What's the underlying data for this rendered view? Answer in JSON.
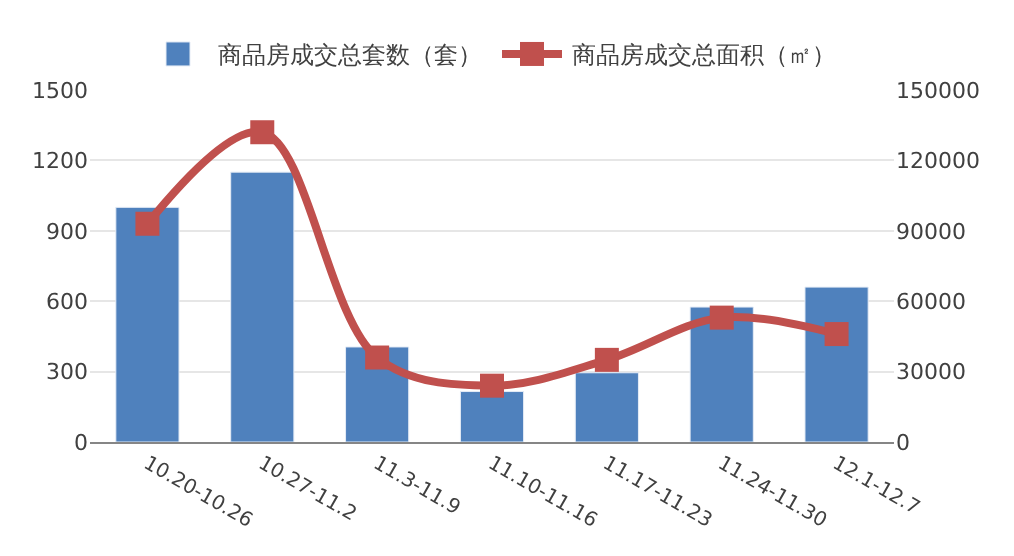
{
  "chart_data": {
    "type": "bar",
    "categories": [
      "10.20-10.26",
      "10.27-11.2",
      "11.3-11.9",
      "11.10-11.16",
      "11.17-11.23",
      "11.24-11.30",
      "12.1-12.7"
    ],
    "series": [
      {
        "name": "商品房成交总套数（套）",
        "color": "#4f81bd",
        "values": [
          1000,
          1150,
          405,
          215,
          295,
          575,
          660
        ]
      },
      {
        "name": "商品房成交总面积（㎡）",
        "color": "#c0504d",
        "type": "line",
        "axis": "y2",
        "marker": "square",
        "values": [
          93000,
          132000,
          36000,
          24000,
          35000,
          53000,
          46000
        ]
      }
    ],
    "ylim": [
      0,
      1500
    ],
    "yticks": [
      0,
      300,
      600,
      900,
      1200,
      1500
    ],
    "y2lim": [
      0,
      150000
    ],
    "y2ticks": [
      0,
      30000,
      60000,
      90000,
      120000,
      150000
    ],
    "grid": "y",
    "legend": "top"
  }
}
